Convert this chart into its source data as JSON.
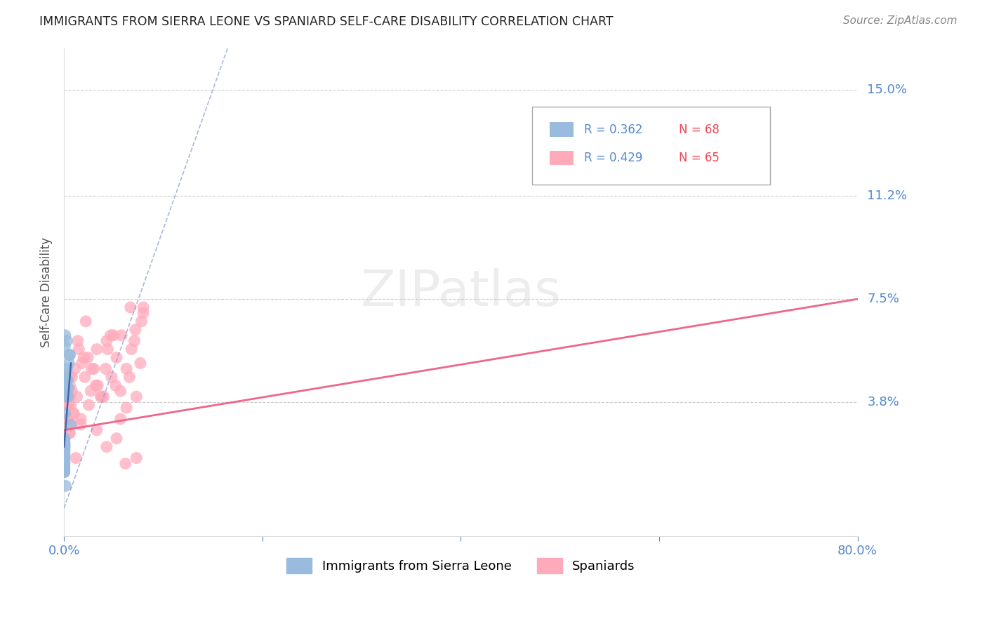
{
  "title": "IMMIGRANTS FROM SIERRA LEONE VS SPANIARD SELF-CARE DISABILITY CORRELATION CHART",
  "source": "Source: ZipAtlas.com",
  "ylabel": "Self-Care Disability",
  "xlim": [
    0.0,
    0.8
  ],
  "ylim": [
    -0.01,
    0.165
  ],
  "ytick_labels_right": [
    "3.8%",
    "7.5%",
    "11.2%",
    "15.0%"
  ],
  "ytick_vals_right": [
    0.038,
    0.075,
    0.112,
    0.15
  ],
  "grid_color": "#cccccc",
  "background_color": "#ffffff",
  "blue_color": "#99bbdd",
  "pink_color": "#ffaabb",
  "blue_trend_color": "#8899cc",
  "pink_trend_color": "#ee6688",
  "legend_r_blue": "R = 0.362",
  "legend_n_blue": "N = 68",
  "legend_r_pink": "R = 0.429",
  "legend_n_pink": "N = 65",
  "label_blue": "Immigrants from Sierra Leone",
  "label_pink": "Spaniards",
  "blue_x": [
    0.0003,
    0.0004,
    0.0003,
    0.0005,
    0.0004,
    0.0003,
    0.0004,
    0.0003,
    0.0005,
    0.0004,
    0.0003,
    0.0003,
    0.0004,
    0.0005,
    0.0003,
    0.0004,
    0.0003,
    0.0004,
    0.0003,
    0.0003,
    0.0003,
    0.0004,
    0.0005,
    0.0003,
    0.0004,
    0.0003,
    0.0003,
    0.0004,
    0.0003,
    0.0004,
    0.0003,
    0.0003,
    0.0003,
    0.0004,
    0.0003,
    0.0003,
    0.0003,
    0.0005,
    0.0004,
    0.0003,
    0.0002,
    0.0002,
    0.0002,
    0.0002,
    0.0002,
    0.0002,
    0.0002,
    0.0002,
    0.0002,
    0.0002,
    0.002,
    0.0025,
    0.003,
    0.0018,
    0.0022,
    0.005,
    0.006,
    0.004,
    0.0015,
    0.0035,
    0.0045,
    0.001,
    0.0008,
    0.0012,
    0.0028,
    0.0055,
    0.0065,
    0.0015
  ],
  "blue_y": [
    0.022,
    0.024,
    0.018,
    0.025,
    0.02,
    0.016,
    0.021,
    0.015,
    0.023,
    0.019,
    0.014,
    0.02,
    0.017,
    0.022,
    0.018,
    0.021,
    0.013,
    0.019,
    0.023,
    0.015,
    0.016,
    0.02,
    0.022,
    0.014,
    0.021,
    0.023,
    0.017,
    0.019,
    0.015,
    0.022,
    0.013,
    0.017,
    0.019,
    0.014,
    0.024,
    0.021,
    0.018,
    0.023,
    0.016,
    0.013,
    0.018,
    0.022,
    0.015,
    0.02,
    0.024,
    0.021,
    0.016,
    0.019,
    0.023,
    0.017,
    0.042,
    0.046,
    0.05,
    0.044,
    0.04,
    0.052,
    0.055,
    0.04,
    0.048,
    0.046,
    0.043,
    0.034,
    0.058,
    0.062,
    0.06,
    0.055,
    0.03,
    0.008
  ],
  "pink_x": [
    0.004,
    0.006,
    0.003,
    0.007,
    0.005,
    0.009,
    0.006,
    0.005,
    0.008,
    0.007,
    0.011,
    0.013,
    0.015,
    0.018,
    0.021,
    0.024,
    0.028,
    0.032,
    0.038,
    0.043,
    0.048,
    0.053,
    0.058,
    0.063,
    0.068,
    0.072,
    0.077,
    0.08,
    0.071,
    0.066,
    0.057,
    0.05,
    0.044,
    0.04,
    0.034,
    0.03,
    0.025,
    0.02,
    0.017,
    0.014,
    0.01,
    0.008,
    0.006,
    0.005,
    0.004,
    0.012,
    0.017,
    0.022,
    0.027,
    0.033,
    0.037,
    0.042,
    0.047,
    0.052,
    0.057,
    0.062,
    0.067,
    0.073,
    0.078,
    0.08,
    0.033,
    0.043,
    0.053,
    0.063,
    0.073
  ],
  "pink_y": [
    0.032,
    0.027,
    0.037,
    0.03,
    0.04,
    0.034,
    0.044,
    0.047,
    0.042,
    0.037,
    0.05,
    0.04,
    0.057,
    0.052,
    0.047,
    0.054,
    0.05,
    0.044,
    0.04,
    0.06,
    0.047,
    0.054,
    0.062,
    0.05,
    0.057,
    0.064,
    0.052,
    0.072,
    0.06,
    0.047,
    0.042,
    0.062,
    0.057,
    0.04,
    0.044,
    0.05,
    0.037,
    0.054,
    0.032,
    0.06,
    0.034,
    0.047,
    0.04,
    0.027,
    0.037,
    0.018,
    0.03,
    0.067,
    0.042,
    0.057,
    0.04,
    0.05,
    0.062,
    0.044,
    0.032,
    0.016,
    0.072,
    0.04,
    0.067,
    0.07,
    0.028,
    0.022,
    0.025,
    0.036,
    0.018
  ],
  "blue_trend_x": [
    0.0,
    0.165
  ],
  "blue_trend_y": [
    0.0,
    0.165
  ],
  "pink_trend_x0": 0.0,
  "pink_trend_y0": 0.028,
  "pink_trend_x1": 0.8,
  "pink_trend_y1": 0.075
}
